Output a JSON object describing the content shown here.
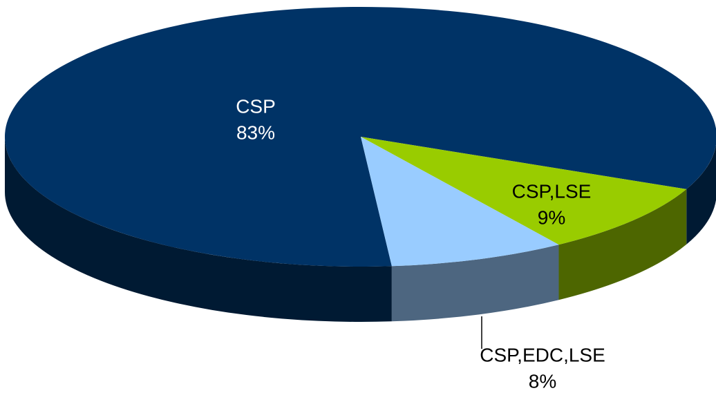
{
  "chart_data": {
    "type": "pie",
    "categories": [
      "CSP",
      "CSP,LSE",
      "CSP,EDC,LSE"
    ],
    "values": [
      83,
      9,
      8
    ],
    "value_labels": [
      "83%",
      "9%",
      "8%"
    ],
    "colors": [
      "#003366",
      "#99cc00",
      "#99ccff"
    ]
  }
}
